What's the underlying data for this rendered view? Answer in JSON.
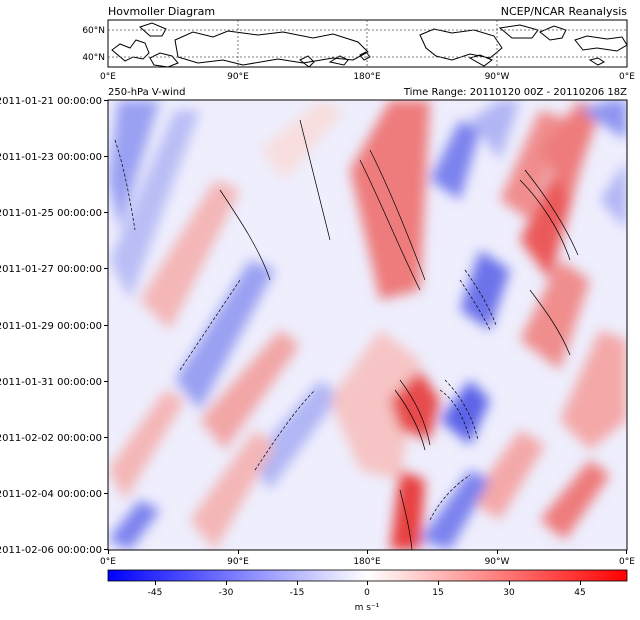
{
  "title_left": "Hovmoller Diagram",
  "title_right": "NCEP/NCAR Reanalysis",
  "panel_left": "250-hPa V-wind",
  "panel_right": "Time Range: 20110120 00Z - 20110206 18Z",
  "map": {
    "lat_labels": [
      "60°N",
      "40°N"
    ],
    "lon_labels": [
      "0°E",
      "90°E",
      "180°E",
      "90°W",
      "0°E"
    ]
  },
  "chart_data": {
    "type": "heatmap",
    "x_label": "",
    "y_label": "",
    "x_ticks": [
      "0°E",
      "90°E",
      "180°E",
      "90°W",
      "0°E"
    ],
    "x_range": [
      0,
      360
    ],
    "y_ticks": [
      "2011-01-21 00:00:00",
      "2011-01-23 00:00:00",
      "2011-01-25 00:00:00",
      "2011-01-27 00:00:00",
      "2011-01-29 00:00:00",
      "2011-01-31 00:00:00",
      "2011-02-02 00:00:00",
      "2011-02-04 00:00:00",
      "2011-02-06 00:00:00"
    ],
    "y_range": [
      "2011-01-21 00:00:00",
      "2011-02-06 00:00:00"
    ],
    "colorbar": {
      "ticks": [
        "-45",
        "-30",
        "-15",
        "0",
        "15",
        "30",
        "45"
      ],
      "range": [
        -55,
        55
      ],
      "units": "m s⁻¹",
      "cmap": "bwr"
    },
    "features": [
      {
        "sign": "positive",
        "peak": 45,
        "lon": 215,
        "date": "2011-02-01"
      },
      {
        "sign": "positive",
        "peak": 40,
        "lon": 300,
        "date": "2011-01-24"
      },
      {
        "sign": "negative",
        "peak": -40,
        "lon": 245,
        "date": "2011-02-01"
      },
      {
        "sign": "negative",
        "peak": -35,
        "lon": 265,
        "date": "2011-01-27"
      },
      {
        "sign": "positive",
        "peak": 45,
        "lon": 210,
        "date": "2011-02-06"
      }
    ]
  }
}
